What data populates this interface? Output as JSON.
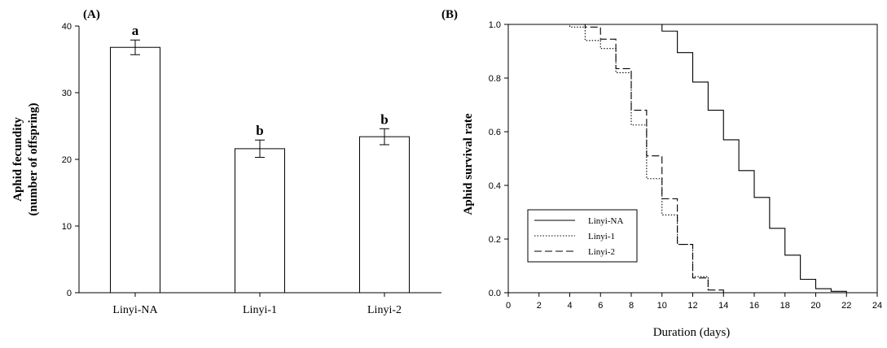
{
  "chart_data": [
    {
      "panel_label": "(A)",
      "type": "bar",
      "categories": [
        "Linyi-NA",
        "Linyi-1",
        "Linyi-2"
      ],
      "values": [
        36.8,
        21.6,
        23.4
      ],
      "errors": [
        1.1,
        1.3,
        1.2
      ],
      "significance": [
        "a",
        "b",
        "b"
      ],
      "ylabel_line1": "Aphid fecundity",
      "ylabel_line2": "(number of offspring)",
      "xlabel": "",
      "ylim": [
        0,
        40
      ],
      "yticks": [
        0,
        10,
        20,
        30,
        40
      ],
      "grid": false,
      "bar_fill": "#ffffff",
      "bar_stroke": "#000000"
    },
    {
      "panel_label": "(B)",
      "type": "line",
      "step": true,
      "xlabel": "Duration (days)",
      "ylabel": "Aphid survival rate",
      "xlim": [
        0,
        24
      ],
      "ylim": [
        0,
        1.0
      ],
      "xticks": [
        0,
        2,
        4,
        6,
        8,
        10,
        12,
        14,
        16,
        18,
        20,
        22,
        24
      ],
      "yticks": [
        "0.0",
        "0.2",
        "0.4",
        "0.6",
        "0.8",
        "1.0"
      ],
      "grid": false,
      "legend_position": "bottom-left",
      "series": [
        {
          "name": "Linyi-NA",
          "style": "solid",
          "x": [
            0,
            10,
            11,
            12,
            13,
            14,
            15,
            16,
            17,
            18,
            19,
            20,
            21,
            22
          ],
          "y": [
            1.0,
            0.975,
            0.895,
            0.785,
            0.68,
            0.57,
            0.455,
            0.355,
            0.24,
            0.14,
            0.05,
            0.015,
            0.005,
            0.0
          ]
        },
        {
          "name": "Linyi-1",
          "style": "dotted",
          "x": [
            0,
            4,
            5,
            6,
            7,
            8,
            9,
            10,
            11,
            12,
            13
          ],
          "y": [
            1.0,
            0.99,
            0.94,
            0.91,
            0.82,
            0.625,
            0.425,
            0.29,
            0.18,
            0.06,
            0.01
          ]
        },
        {
          "name": "Linyi-2",
          "style": "dashed",
          "x": [
            0,
            5,
            6,
            7,
            8,
            9,
            10,
            11,
            12,
            13,
            14
          ],
          "y": [
            1.0,
            0.99,
            0.945,
            0.835,
            0.68,
            0.51,
            0.35,
            0.18,
            0.055,
            0.01,
            0.0
          ]
        }
      ]
    }
  ]
}
